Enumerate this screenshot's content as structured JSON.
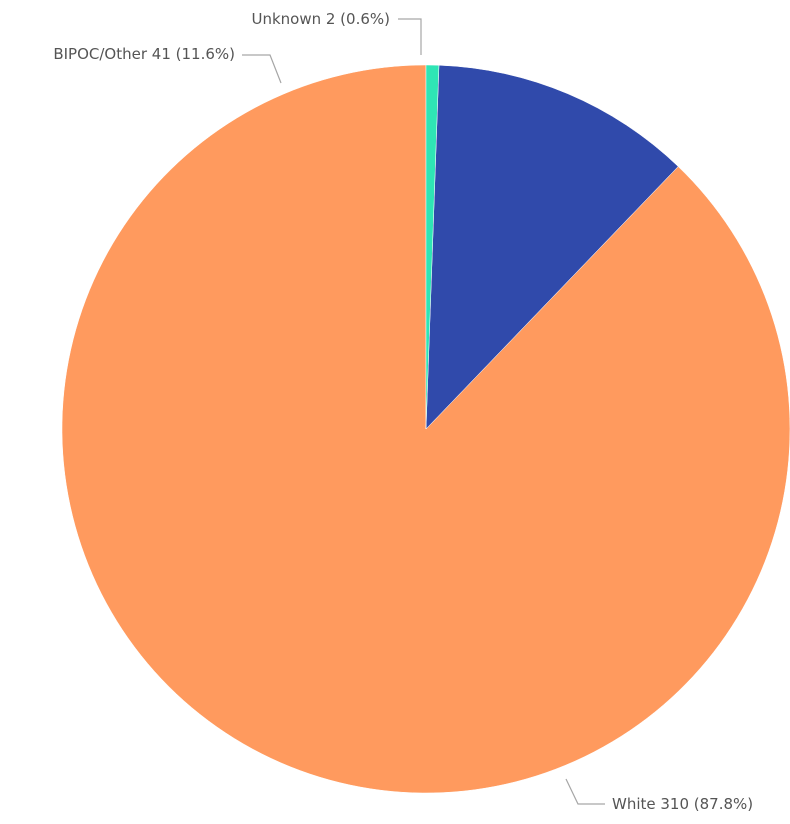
{
  "chart_data": {
    "type": "pie",
    "title": "",
    "start_angle_deg": 0,
    "direction": "counterclockwise",
    "slices": [
      {
        "category": "White",
        "value": 310,
        "percent": 87.8,
        "label": "White 310 (87.8%)",
        "color": "#FF9A5E"
      },
      {
        "category": "BIPOC/Other",
        "value": 41,
        "percent": 11.6,
        "label": "BIPOC/Other 41 (11.6%)",
        "color": "#304AAB"
      },
      {
        "category": "Unknown",
        "value": 2,
        "percent": 0.6,
        "label": "Unknown 2 (0.6%)",
        "color": "#2FE5B5"
      }
    ],
    "legend": "none",
    "label_placement": "outside-with-leader-lines"
  }
}
